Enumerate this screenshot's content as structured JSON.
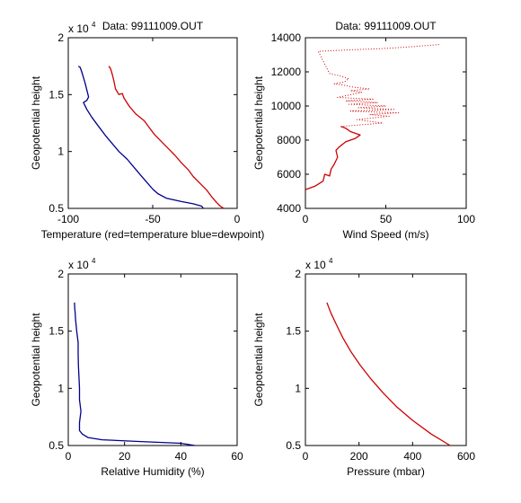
{
  "chart_data": [
    {
      "type": "line",
      "title": "Data: 99111009.OUT",
      "xlabel": "Temperature (red=temperature blue=dewpoint)",
      "ylabel": "Geopotential height",
      "y_exponent_label": "x 10",
      "y_exponent_power": "4",
      "xlim": [
        -100,
        0
      ],
      "ylim": [
        0.5,
        2
      ],
      "x_ticks": [
        -100,
        -50,
        0
      ],
      "x_tick_labels": [
        "-100",
        "-50",
        "0"
      ],
      "y_ticks": [
        0.5,
        1,
        1.5,
        2
      ],
      "y_tick_labels": [
        "0.5",
        "1",
        "1.5",
        "2"
      ],
      "series": [
        {
          "color": "#cc0000",
          "style": "solid",
          "points": [
            [
              -8,
              0.5
            ],
            [
              -9,
              0.51
            ],
            [
              -10,
              0.52
            ],
            [
              -12,
              0.55
            ],
            [
              -15,
              0.6
            ],
            [
              -18,
              0.66
            ],
            [
              -22,
              0.72
            ],
            [
              -26,
              0.78
            ],
            [
              -29,
              0.84
            ],
            [
              -33,
              0.9
            ],
            [
              -37,
              0.97
            ],
            [
              -41,
              1.03
            ],
            [
              -45,
              1.09
            ],
            [
              -49,
              1.15
            ],
            [
              -52,
              1.21
            ],
            [
              -55,
              1.27
            ],
            [
              -60,
              1.33
            ],
            [
              -64,
              1.4
            ],
            [
              -67,
              1.47
            ],
            [
              -68,
              1.51
            ],
            [
              -70,
              1.5
            ],
            [
              -72,
              1.55
            ],
            [
              -73,
              1.62
            ],
            [
              -74,
              1.68
            ],
            [
              -75,
              1.73
            ],
            [
              -76,
              1.75
            ]
          ]
        },
        {
          "color": "#00008b",
          "style": "solid",
          "points": [
            [
              -20,
              0.5
            ],
            [
              -21,
              0.52
            ],
            [
              -26,
              0.54
            ],
            [
              -33,
              0.56
            ],
            [
              -42,
              0.59
            ],
            [
              -47,
              0.63
            ],
            [
              -50,
              0.67
            ],
            [
              -53,
              0.72
            ],
            [
              -57,
              0.79
            ],
            [
              -61,
              0.86
            ],
            [
              -65,
              0.93
            ],
            [
              -70,
              1.0
            ],
            [
              -74,
              1.07
            ],
            [
              -78,
              1.14
            ],
            [
              -82,
              1.22
            ],
            [
              -86,
              1.3
            ],
            [
              -89,
              1.37
            ],
            [
              -91,
              1.43
            ],
            [
              -89,
              1.45
            ],
            [
              -88,
              1.48
            ],
            [
              -89,
              1.54
            ],
            [
              -90,
              1.6
            ],
            [
              -91,
              1.65
            ],
            [
              -92,
              1.7
            ],
            [
              -93,
              1.74
            ],
            [
              -94,
              1.75
            ]
          ]
        }
      ]
    },
    {
      "type": "line",
      "title": "Data: 99111009.OUT",
      "xlabel": "Wind Speed (m/s)",
      "ylabel": "Geopotential height",
      "xlim": [
        0,
        100
      ],
      "ylim": [
        4000,
        14000
      ],
      "x_ticks": [
        0,
        50,
        100
      ],
      "x_tick_labels": [
        "0",
        "50",
        "100"
      ],
      "y_ticks": [
        4000,
        6000,
        8000,
        10000,
        12000,
        14000
      ],
      "y_tick_labels": [
        "4000",
        "6000",
        "8000",
        "10000",
        "12000",
        "14000"
      ],
      "series": [
        {
          "color": "#cc0000",
          "style": "solid",
          "points": [
            [
              0,
              5100
            ],
            [
              6,
              5300
            ],
            [
              11,
              5600
            ],
            [
              12,
              6000
            ],
            [
              15,
              5900
            ],
            [
              16,
              6300
            ],
            [
              18,
              6600
            ],
            [
              20,
              7000
            ],
            [
              19,
              7400
            ],
            [
              21,
              7600
            ],
            [
              25,
              7900
            ],
            [
              31,
              8100
            ],
            [
              34,
              8300
            ],
            [
              28,
              8500
            ],
            [
              25,
              8700
            ],
            [
              22,
              8800
            ]
          ]
        },
        {
          "color": "#cc0000",
          "style": "dotted",
          "points": [
            [
              22,
              8800
            ],
            [
              48,
              9000
            ],
            [
              32,
              9200
            ],
            [
              52,
              9400
            ],
            [
              40,
              9500
            ],
            [
              58,
              9600
            ],
            [
              28,
              9700
            ],
            [
              55,
              9800
            ],
            [
              33,
              9900
            ],
            [
              50,
              10000
            ],
            [
              27,
              10100
            ],
            [
              45,
              10200
            ],
            [
              25,
              10300
            ],
            [
              42,
              10400
            ],
            [
              20,
              10500
            ],
            [
              30,
              10700
            ],
            [
              35,
              10800
            ],
            [
              28,
              10900
            ],
            [
              40,
              11000
            ],
            [
              30,
              11100
            ],
            [
              25,
              11200
            ],
            [
              18,
              11300
            ],
            [
              24,
              11400
            ],
            [
              27,
              11600
            ],
            [
              20,
              11800
            ],
            [
              15,
              11900
            ],
            [
              8,
              13200
            ],
            [
              30,
              13300
            ],
            [
              45,
              13350
            ],
            [
              55,
              13400
            ],
            [
              70,
              13500
            ],
            [
              83,
              13600
            ]
          ]
        }
      ]
    },
    {
      "type": "line",
      "title": "",
      "xlabel": "Relative Humidity (%)",
      "ylabel": "Geopotential height",
      "y_exponent_label": "x 10",
      "y_exponent_power": "4",
      "xlim": [
        0,
        60
      ],
      "ylim": [
        0.5,
        2
      ],
      "x_ticks": [
        0,
        20,
        40,
        60
      ],
      "x_tick_labels": [
        "0",
        "20",
        "40",
        "60"
      ],
      "y_ticks": [
        0.5,
        1,
        1.5,
        2
      ],
      "y_tick_labels": [
        "0.5",
        "1",
        "1.5",
        "2"
      ],
      "series": [
        {
          "color": "#00008b",
          "style": "solid",
          "points": [
            [
              45,
              0.5
            ],
            [
              40,
              0.52
            ],
            [
              25,
              0.535
            ],
            [
              12,
              0.55
            ],
            [
              7,
              0.57
            ],
            [
              5,
              0.6
            ],
            [
              4,
              0.63
            ],
            [
              4,
              0.7
            ],
            [
              4.5,
              0.8
            ],
            [
              4,
              0.9
            ],
            [
              4,
              1.0
            ],
            [
              3.8,
              1.1
            ],
            [
              3.6,
              1.2
            ],
            [
              3.5,
              1.3
            ],
            [
              3.5,
              1.4
            ],
            [
              3,
              1.5
            ],
            [
              2.8,
              1.55
            ],
            [
              2.6,
              1.6
            ],
            [
              2.5,
              1.65
            ],
            [
              2.3,
              1.7
            ],
            [
              2.2,
              1.75
            ]
          ]
        }
      ]
    },
    {
      "type": "line",
      "title": "",
      "xlabel": "Pressure (mbar)",
      "ylabel": "Geopotential height",
      "y_exponent_label": "x 10",
      "y_exponent_power": "4",
      "xlim": [
        0,
        600
      ],
      "ylim": [
        0.5,
        2
      ],
      "x_ticks": [
        0,
        200,
        400,
        600
      ],
      "x_tick_labels": [
        "0",
        "200",
        "400",
        "600"
      ],
      "y_ticks": [
        0.5,
        1,
        1.5,
        2
      ],
      "y_tick_labels": [
        "0.5",
        "1",
        "1.5",
        "2"
      ],
      "series": [
        {
          "color": "#cc0000",
          "style": "solid",
          "points": [
            [
              540,
              0.5
            ],
            [
              470,
              0.6
            ],
            [
              400,
              0.72
            ],
            [
              340,
              0.84
            ],
            [
              290,
              0.96
            ],
            [
              245,
              1.08
            ],
            [
              205,
              1.2
            ],
            [
              170,
              1.32
            ],
            [
              140,
              1.44
            ],
            [
              115,
              1.56
            ],
            [
              95,
              1.66
            ],
            [
              80,
              1.75
            ]
          ]
        }
      ]
    }
  ]
}
